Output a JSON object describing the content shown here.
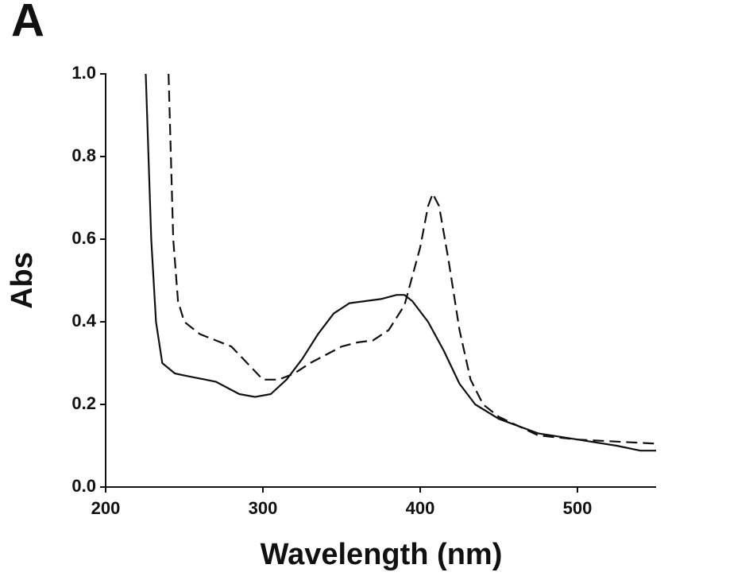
{
  "chart_data": {
    "type": "line",
    "panel_label": "A",
    "x_label": "Wavelength (nm)",
    "y_label": "Abs",
    "xlim": [
      200,
      550
    ],
    "xticks": [
      200,
      300,
      400,
      500
    ],
    "ylim": [
      0,
      1
    ],
    "yticks": [
      {
        "value": 0,
        "label": "0.0"
      },
      0.2,
      0.4,
      0.6,
      0.8,
      {
        "value": 1,
        "label": "1.0"
      }
    ],
    "grid": false,
    "series": [
      {
        "color": "#111111",
        "line_style": "solid",
        "x": [
          225.5,
          229,
          232,
          236,
          244,
          250,
          270,
          285,
          295,
          305,
          315,
          325,
          335,
          345,
          355,
          365,
          375,
          385,
          390,
          395,
          405,
          415,
          425,
          435,
          450,
          475,
          500,
          525,
          540,
          550
        ],
        "values": [
          1.0,
          0.6,
          0.4,
          0.3,
          0.275,
          0.27,
          0.255,
          0.225,
          0.218,
          0.225,
          0.26,
          0.31,
          0.37,
          0.42,
          0.445,
          0.45,
          0.455,
          0.465,
          0.465,
          0.45,
          0.4,
          0.33,
          0.25,
          0.2,
          0.165,
          0.13,
          0.115,
          0.1,
          0.088,
          0.088
        ]
      },
      {
        "color": "#111111",
        "line_style": "dashed",
        "x": [
          240,
          243,
          246,
          250,
          260,
          270,
          280,
          290,
          300,
          310,
          320,
          330,
          340,
          350,
          360,
          370,
          380,
          390,
          400,
          405,
          408,
          412,
          418,
          425,
          432,
          440,
          450,
          475,
          500,
          525,
          550
        ],
        "values": [
          1.0,
          0.6,
          0.45,
          0.4,
          0.37,
          0.355,
          0.34,
          0.3,
          0.26,
          0.26,
          0.275,
          0.3,
          0.32,
          0.34,
          0.35,
          0.355,
          0.38,
          0.44,
          0.58,
          0.68,
          0.71,
          0.68,
          0.55,
          0.38,
          0.26,
          0.2,
          0.17,
          0.125,
          0.115,
          0.11,
          0.105
        ]
      }
    ]
  }
}
